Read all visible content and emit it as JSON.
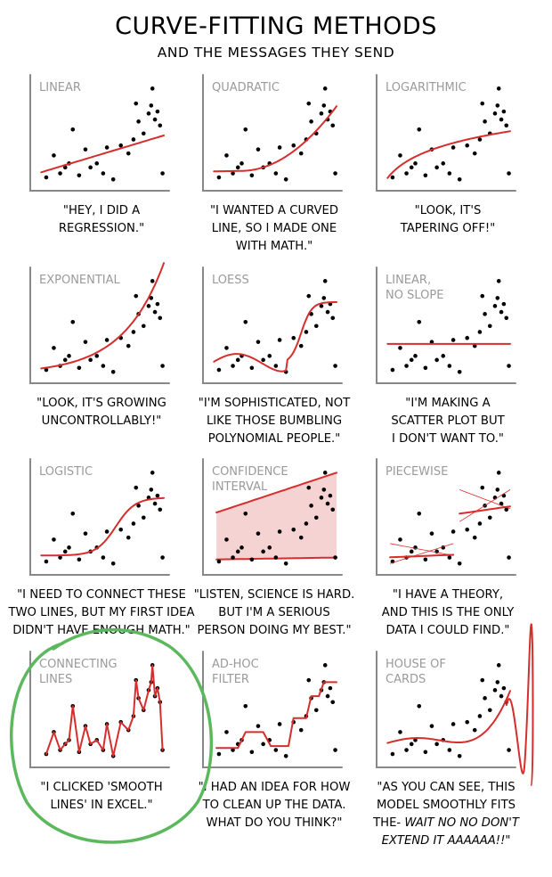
{
  "header": {
    "title": "CURVE-FITTING METHODS",
    "subtitle": "AND THE MESSAGES THEY SEND"
  },
  "colors": {
    "points": "#000000",
    "curve": "#d62d2d",
    "band": "#f6d3d3",
    "axes": "#888888",
    "panel_title": "#9a9a9a",
    "circle": "#5cb85c"
  },
  "annotation": {
    "shape": "green hand-drawn circle",
    "target": "CONNECTING LINES"
  },
  "chart_data": [
    {
      "type": "scatter",
      "fit": "linear",
      "title_lines": [
        "LINEAR"
      ],
      "caption_lines": [
        "\"HEY, I DID A",
        "REGRESSION.\""
      ]
    },
    {
      "type": "scatter",
      "fit": "quadratic",
      "title_lines": [
        "QUADRATIC"
      ],
      "caption_lines": [
        "\"I WANTED A CURVED",
        "LINE, SO I MADE ONE",
        "WITH MATH.\""
      ]
    },
    {
      "type": "scatter",
      "fit": "logarithmic",
      "title_lines": [
        "LOGARITHMIC"
      ],
      "caption_lines": [
        "\"LOOK, IT'S",
        "TAPERING OFF!\""
      ]
    },
    {
      "type": "scatter",
      "fit": "exponential",
      "title_lines": [
        "EXPONENTIAL"
      ],
      "caption_lines": [
        "\"LOOK, IT'S GROWING",
        "UNCONTROLLABLY!\""
      ]
    },
    {
      "type": "scatter",
      "fit": "loess",
      "title_lines": [
        "LOESS"
      ],
      "caption_lines": [
        "\"I'M SOPHISTICATED, NOT",
        "LIKE THOSE BUMBLING",
        "POLYNOMIAL PEOPLE.\""
      ]
    },
    {
      "type": "scatter",
      "fit": "flat",
      "title_lines": [
        "LINEAR,",
        "NO SLOPE"
      ],
      "caption_lines": [
        "\"I'M MAKING A",
        "SCATTER PLOT BUT",
        "I DON'T WANT TO.\""
      ]
    },
    {
      "type": "scatter",
      "fit": "logistic",
      "title_lines": [
        "LOGISTIC"
      ],
      "caption_lines": [
        "\"I NEED TO CONNECT THESE",
        "TWO LINES, BUT MY FIRST IDEA",
        "DIDN'T HAVE ENOUGH MATH.\""
      ]
    },
    {
      "type": "scatter",
      "fit": "confidence",
      "title_lines": [
        "CONFIDENCE",
        "INTERVAL"
      ],
      "caption_lines": [
        "\"LISTEN, SCIENCE IS HARD.",
        "BUT I'M A SERIOUS",
        "PERSON DOING MY BEST.\""
      ]
    },
    {
      "type": "scatter",
      "fit": "piecewise",
      "title_lines": [
        "PIECEWISE"
      ],
      "caption_lines": [
        "\"I HAVE A THEORY,",
        "AND THIS IS THE ONLY",
        "DATA I COULD FIND.\""
      ]
    },
    {
      "type": "scatter",
      "fit": "connecting",
      "title_lines": [
        "CONNECTING",
        "LINES"
      ],
      "caption_lines": [
        "\"I CLICKED 'SMOOTH",
        "LINES' IN EXCEL.\""
      ]
    },
    {
      "type": "scatter",
      "fit": "adhoc",
      "title_lines": [
        "AD-HOC",
        "FILTER"
      ],
      "caption_lines": [
        "\"I HAD AN IDEA FOR HOW",
        "TO CLEAN UP THE DATA.",
        "WHAT DO YOU THINK?\""
      ]
    },
    {
      "type": "scatter",
      "fit": "houseofcards",
      "title_lines": [
        "HOUSE OF",
        "CARDS"
      ],
      "caption_lines": [
        "\"AS YOU CAN SEE, THIS",
        "MODEL SMOOTHLY FITS",
        "THE- ",
        "WAIT NO NO DON'T",
        "EXTEND IT AAAAAA!!\""
      ]
    }
  ]
}
